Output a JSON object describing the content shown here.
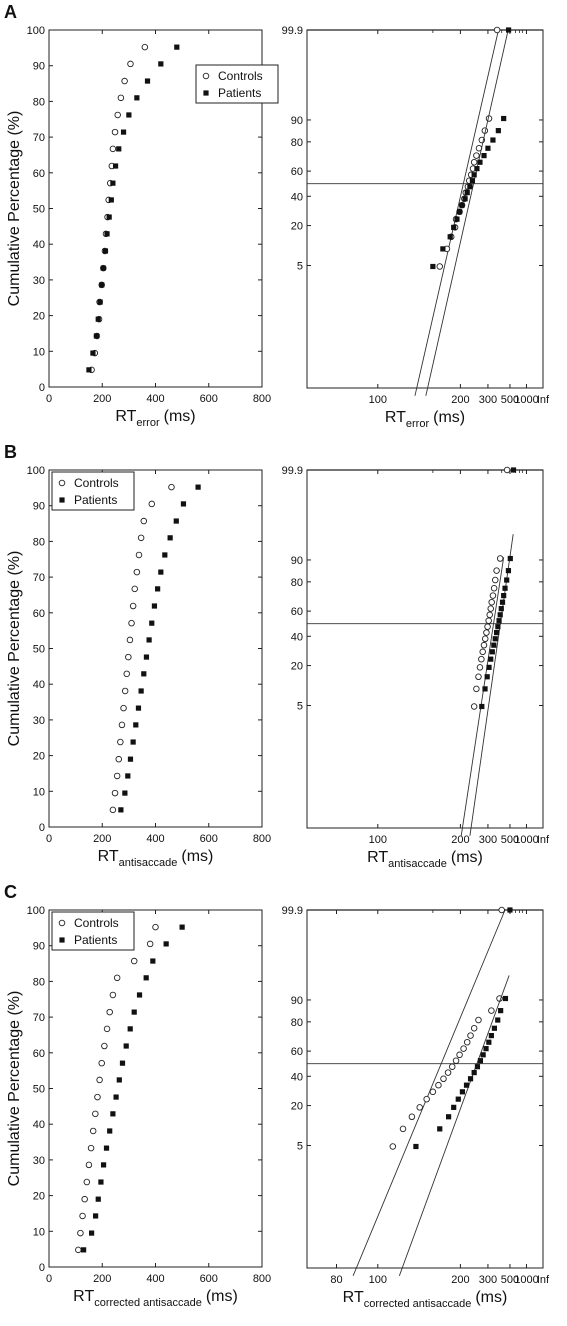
{
  "figure": {
    "panel_letters": [
      "A",
      "B",
      "C"
    ]
  },
  "chart_data": [
    {
      "panel": "A",
      "type": "scatter",
      "ylabel": "Cumulative Percentage (%)",
      "xlabel_main": "RT",
      "xlabel_sub": "error",
      "xlabel_unit": "(ms)",
      "xlim": [
        0,
        800
      ],
      "ylim": [
        0,
        100
      ],
      "xticks": [
        0,
        200,
        400,
        600,
        800
      ],
      "yticks": [
        0,
        10,
        20,
        30,
        40,
        50,
        60,
        70,
        80,
        90,
        100
      ],
      "legend": {
        "placement": "top-right",
        "entries": [
          "Controls",
          "Patients"
        ]
      },
      "series": [
        {
          "name": "Controls",
          "marker": "open-circle",
          "x": [
            160,
            172,
            180,
            188,
            190,
            198,
            204,
            210,
            214,
            220,
            224,
            230,
            236,
            240,
            248,
            258,
            270,
            284,
            306,
            360
          ],
          "y": [
            4.8,
            9.5,
            14.3,
            19,
            23.8,
            28.6,
            33.3,
            38.1,
            42.9,
            47.6,
            52.4,
            57.1,
            61.9,
            66.7,
            71.4,
            76.2,
            81,
            85.7,
            90.5,
            95.2
          ]
        },
        {
          "name": "Patients",
          "marker": "filled-square",
          "x": [
            150,
            165,
            178,
            185,
            192,
            198,
            204,
            212,
            218,
            226,
            234,
            240,
            250,
            262,
            280,
            300,
            330,
            370,
            420,
            480
          ],
          "y": [
            4.8,
            9.5,
            14.3,
            19,
            23.8,
            28.6,
            33.3,
            38.1,
            42.9,
            47.6,
            52.4,
            57.1,
            61.9,
            66.7,
            71.4,
            76.2,
            81,
            85.7,
            90.5,
            95.2
          ]
        }
      ]
    },
    {
      "panel": "A",
      "type": "scatter",
      "scale": "reciprocal",
      "xlabel_main": "RT",
      "xlabel_sub": "error",
      "xlabel_unit": "(ms)",
      "xtick_labels": [
        "100",
        "200",
        "300",
        "500",
        "1000",
        "Inf"
      ],
      "ytick_labels": [
        "5",
        "20",
        "40",
        "60",
        "80",
        "90",
        "99.9"
      ],
      "reference_line_percent": 50,
      "series": [
        {
          "name": "Controls",
          "marker": "open-circle",
          "x": [
            160,
            172,
            180,
            188,
            190,
            198,
            204,
            210,
            214,
            220,
            224,
            230,
            236,
            240,
            248,
            258,
            270,
            284,
            306,
            360
          ],
          "y": [
            4.8,
            9.5,
            14.3,
            19,
            23.8,
            28.6,
            33.3,
            38.1,
            42.9,
            47.6,
            52.4,
            57.1,
            61.9,
            66.7,
            71.4,
            76.2,
            81,
            85.7,
            90.5,
            99.9
          ],
          "fit_line": {
            "x": [
              129,
              371
            ],
            "y": [
              0.001,
              99.9
            ]
          }
        },
        {
          "name": "Patients",
          "marker": "filled-square",
          "x": [
            150,
            165,
            178,
            185,
            192,
            198,
            204,
            212,
            218,
            226,
            234,
            240,
            250,
            262,
            280,
            300,
            330,
            370,
            420,
            480
          ],
          "y": [
            4.8,
            9.5,
            14.3,
            19,
            23.8,
            28.6,
            33.3,
            38.1,
            42.9,
            47.6,
            52.4,
            57.1,
            61.9,
            66.7,
            71.4,
            76.2,
            81,
            85.7,
            90.5,
            99.9
          ],
          "fit_line": {
            "x": [
              141,
              474
            ],
            "y": [
              0.001,
              99.9
            ]
          }
        }
      ]
    },
    {
      "panel": "B",
      "type": "scatter",
      "ylabel": "Cumulative Percentage (%)",
      "xlabel_main": "RT",
      "xlabel_sub": "antisaccade",
      "xlabel_unit": "(ms)",
      "xlim": [
        0,
        800
      ],
      "ylim": [
        0,
        100
      ],
      "xticks": [
        0,
        200,
        400,
        600,
        800
      ],
      "yticks": [
        0,
        10,
        20,
        30,
        40,
        50,
        60,
        70,
        80,
        90,
        100
      ],
      "legend": {
        "placement": "top-left",
        "entries": [
          "Controls",
          "Patients"
        ]
      },
      "series": [
        {
          "name": "Controls",
          "marker": "open-circle",
          "x": [
            240,
            248,
            256,
            262,
            268,
            274,
            280,
            286,
            292,
            298,
            304,
            310,
            316,
            322,
            330,
            338,
            346,
            356,
            386,
            460
          ],
          "y": [
            4.8,
            9.5,
            14.3,
            19,
            23.8,
            28.6,
            33.3,
            38.1,
            42.9,
            47.6,
            52.4,
            57.1,
            61.9,
            66.7,
            71.4,
            76.2,
            81,
            85.7,
            90.5,
            95.2
          ]
        },
        {
          "name": "Patients",
          "marker": "filled-square",
          "x": [
            270,
            285,
            296,
            306,
            316,
            326,
            336,
            346,
            356,
            366,
            376,
            386,
            396,
            408,
            420,
            435,
            455,
            478,
            505,
            560
          ],
          "y": [
            4.8,
            9.5,
            14.3,
            19,
            23.8,
            28.6,
            33.3,
            38.1,
            42.9,
            47.6,
            52.4,
            57.1,
            61.9,
            66.7,
            71.4,
            76.2,
            81,
            85.7,
            90.5,
            95.2
          ]
        }
      ]
    },
    {
      "panel": "B",
      "type": "scatter",
      "scale": "reciprocal",
      "xlabel_main": "RT",
      "xlabel_sub": "antisaccade",
      "xlabel_unit": "(ms)",
      "xtick_labels": [
        "100",
        "200",
        "300",
        "500",
        "1000",
        "Inf"
      ],
      "ytick_labels": [
        "5",
        "20",
        "40",
        "60",
        "80",
        "90",
        "99.9"
      ],
      "reference_line_percent": 50,
      "series": [
        {
          "name": "Controls",
          "marker": "open-circle",
          "x": [
            240,
            248,
            256,
            262,
            268,
            274,
            280,
            286,
            292,
            298,
            304,
            310,
            316,
            322,
            330,
            338,
            346,
            356,
            386,
            460
          ],
          "y": [
            4.8,
            9.5,
            14.3,
            19,
            23.8,
            28.6,
            33.3,
            38.1,
            42.9,
            47.6,
            52.4,
            57.1,
            61.9,
            66.7,
            71.4,
            76.2,
            81,
            85.7,
            90.5,
            99.9
          ],
          "fit_line": {
            "x": [
              202,
              420
            ],
            "y": [
              0.001,
              90.9
            ]
          }
        },
        {
          "name": "Patients",
          "marker": "filled-square",
          "x": [
            270,
            285,
            296,
            306,
            316,
            326,
            336,
            346,
            356,
            366,
            376,
            386,
            396,
            408,
            420,
            435,
            455,
            478,
            505,
            560
          ],
          "y": [
            4.8,
            9.5,
            14.3,
            19,
            23.8,
            28.6,
            33.3,
            38.1,
            42.9,
            47.6,
            52.4,
            57.1,
            61.9,
            66.7,
            71.4,
            76.2,
            81,
            85.7,
            90.5,
            99.9
          ],
          "fit_line": {
            "x": [
              226,
              554
            ],
            "y": [
              0.001,
              96.4
            ]
          }
        }
      ]
    },
    {
      "panel": "C",
      "type": "scatter",
      "ylabel": "Cumulative Percentage (%)",
      "xlabel_main": "RT",
      "xlabel_sub": "corrected antisaccade",
      "xlabel_unit": "(ms)",
      "xlim": [
        0,
        800
      ],
      "ylim": [
        0,
        100
      ],
      "xticks": [
        0,
        200,
        400,
        600,
        800
      ],
      "yticks": [
        0,
        10,
        20,
        30,
        40,
        50,
        60,
        70,
        80,
        90,
        100
      ],
      "legend": {
        "placement": "top-left",
        "entries": [
          "Controls",
          "Patients"
        ]
      },
      "series": [
        {
          "name": "Controls",
          "marker": "open-circle",
          "x": [
            110,
            118,
            126,
            134,
            142,
            150,
            158,
            166,
            174,
            182,
            190,
            198,
            208,
            218,
            228,
            240,
            256,
            320,
            380,
            400
          ],
          "y": [
            4.8,
            9.5,
            14.3,
            19,
            23.8,
            28.6,
            33.3,
            38.1,
            42.9,
            47.6,
            52.4,
            57.1,
            61.9,
            66.7,
            71.4,
            76.2,
            81,
            85.7,
            90.5,
            95.2
          ]
        },
        {
          "name": "Patients",
          "marker": "filled-square",
          "x": [
            130,
            160,
            175,
            185,
            195,
            205,
            216,
            228,
            240,
            252,
            264,
            276,
            290,
            305,
            320,
            340,
            365,
            390,
            440,
            500
          ],
          "y": [
            4.8,
            9.5,
            14.3,
            19,
            23.8,
            28.6,
            33.3,
            38.1,
            42.9,
            47.6,
            52.4,
            57.1,
            61.9,
            66.7,
            71.4,
            76.2,
            81,
            85.7,
            90.5,
            95.2
          ]
        }
      ]
    },
    {
      "panel": "C",
      "type": "scatter",
      "scale": "reciprocal",
      "xlabel_main": "RT",
      "xlabel_sub": "corrected antisaccade",
      "xlabel_unit": "(ms)",
      "xtick_labels": [
        "80",
        "100",
        "200",
        "300",
        "500",
        "1000",
        "Inf"
      ],
      "ytick_labels": [
        "5",
        "20",
        "40",
        "60",
        "80",
        "90",
        "99.9"
      ],
      "reference_line_percent": 50,
      "series": [
        {
          "name": "Controls",
          "marker": "open-circle",
          "x": [
            110,
            118,
            126,
            134,
            142,
            150,
            158,
            166,
            174,
            182,
            190,
            198,
            208,
            218,
            228,
            240,
            256,
            320,
            380,
            400
          ],
          "y": [
            4.8,
            9.5,
            14.3,
            19,
            23.8,
            28.6,
            33.3,
            38.1,
            42.9,
            47.6,
            52.4,
            57.1,
            61.9,
            66.7,
            71.4,
            76.2,
            81,
            85.7,
            90.5,
            99.9
          ],
          "fit_line": {
            "x": [
              87,
              435
            ],
            "y": [
              0.001,
              99.9
            ]
          }
        },
        {
          "name": "Patients",
          "marker": "filled-square",
          "x": [
            130,
            160,
            175,
            185,
            195,
            205,
            216,
            228,
            240,
            252,
            264,
            276,
            290,
            305,
            320,
            340,
            365,
            390,
            440,
            500
          ],
          "y": [
            4.8,
            9.5,
            14.3,
            19,
            23.8,
            28.6,
            33.3,
            38.1,
            42.9,
            47.6,
            52.4,
            57.1,
            61.9,
            66.7,
            71.4,
            76.2,
            81,
            85.7,
            90.5,
            99.9
          ],
          "fit_line": {
            "x": [
              115,
              488
            ],
            "y": [
              0.001,
              96.2
            ]
          }
        }
      ]
    }
  ]
}
